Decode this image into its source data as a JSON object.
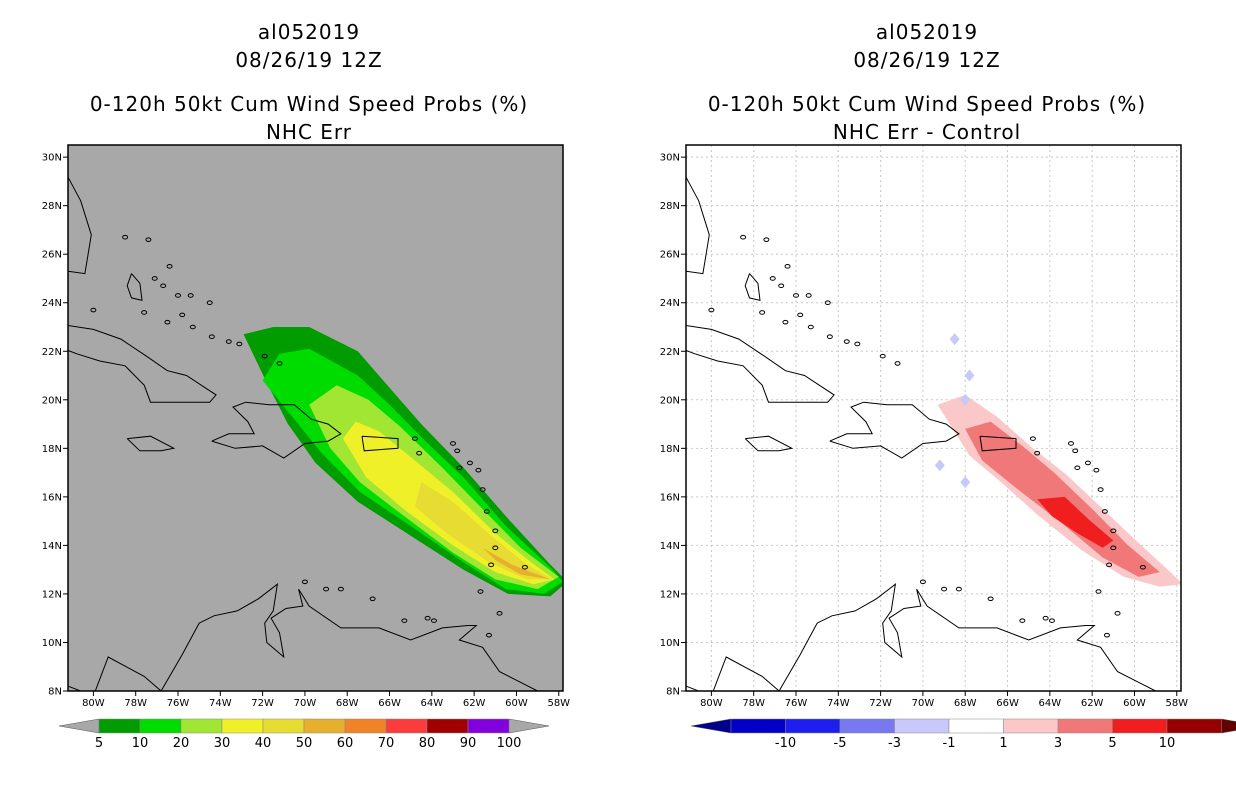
{
  "left_panel": {
    "storm_id": "al052019",
    "datetime": "08/26/19 12Z",
    "product": "0-120h 50kt Cum Wind Speed Probs (%)",
    "subtitle": "NHC Err",
    "background_color": "#a8a8a8",
    "colorbar": {
      "colors": [
        "#009c00",
        "#00dc00",
        "#a0e632",
        "#f0f028",
        "#e6dc32",
        "#e6af2d",
        "#f08228",
        "#fa3c3c",
        "#a00000",
        "#8200dc"
      ],
      "labels": [
        "5",
        "10",
        "20",
        "30",
        "40",
        "50",
        "60",
        "70",
        "80",
        "90",
        "100"
      ]
    }
  },
  "right_panel": {
    "storm_id": "al052019",
    "datetime": "08/26/19 12Z",
    "product": "0-120h 50kt Cum Wind Speed Probs (%)",
    "subtitle": "NHC Err - Control",
    "background_color": "#ffffff",
    "colorbar": {
      "colors": [
        "#0000c8",
        "#1e1ef0",
        "#7878f0",
        "#c8c8fa",
        "#ffffff",
        "#fac8c8",
        "#f07878",
        "#f01e1e",
        "#960000"
      ],
      "labels": [
        "-10",
        "-5",
        "-3",
        "-1",
        "1",
        "3",
        "5",
        "10"
      ]
    }
  },
  "axes": {
    "lat_labels": [
      "8N",
      "10N",
      "12N",
      "14N",
      "16N",
      "18N",
      "20N",
      "22N",
      "24N",
      "26N",
      "28N",
      "30N"
    ],
    "lon_labels": [
      "80W",
      "78W",
      "76W",
      "74W",
      "72W",
      "70W",
      "68W",
      "66W",
      "64W",
      "62W",
      "60W",
      "58W"
    ],
    "lon_range_deg": [
      -81.2,
      -57.8
    ],
    "lat_range_deg": [
      8.0,
      30.5
    ]
  },
  "map_data": {
    "left_contours": [
      {
        "level": "5-10",
        "color": "#009c00",
        "outline": [
          [
            -72.9,
            22.7
          ],
          [
            -71.5,
            23.0
          ],
          [
            -69.8,
            23.0
          ],
          [
            -67.5,
            22.0
          ],
          [
            -66.0,
            20.5
          ],
          [
            -64.5,
            19.0
          ],
          [
            -62.5,
            17.2
          ],
          [
            -60.5,
            15.2
          ],
          [
            -58.5,
            13.3
          ],
          [
            -57.6,
            12.5
          ],
          [
            -58.4,
            11.9
          ],
          [
            -60.4,
            12.0
          ],
          [
            -62.5,
            13.0
          ],
          [
            -65.0,
            14.4
          ],
          [
            -67.5,
            15.8
          ],
          [
            -69.5,
            17.4
          ],
          [
            -70.8,
            19.0
          ],
          [
            -71.8,
            20.7
          ]
        ]
      },
      {
        "level": "10-20",
        "color": "#00dc00",
        "outline": [
          [
            -72.0,
            20.8
          ],
          [
            -71.2,
            21.9
          ],
          [
            -69.8,
            22.1
          ],
          [
            -67.5,
            21.0
          ],
          [
            -66.0,
            19.8
          ],
          [
            -64.3,
            18.3
          ],
          [
            -62.5,
            16.8
          ],
          [
            -60.5,
            14.8
          ],
          [
            -58.4,
            13.1
          ],
          [
            -57.8,
            12.5
          ],
          [
            -58.7,
            12.0
          ],
          [
            -60.5,
            12.2
          ],
          [
            -62.5,
            13.3
          ],
          [
            -65.0,
            14.8
          ],
          [
            -67.4,
            16.2
          ],
          [
            -69.2,
            17.8
          ],
          [
            -70.6,
            19.3
          ]
        ]
      },
      {
        "level": "20-30",
        "color": "#a0e632",
        "outline": [
          [
            -69.8,
            19.8
          ],
          [
            -68.5,
            20.6
          ],
          [
            -67.0,
            20.0
          ],
          [
            -65.5,
            18.9
          ],
          [
            -63.5,
            17.2
          ],
          [
            -61.6,
            15.5
          ],
          [
            -59.8,
            13.9
          ],
          [
            -58.0,
            12.7
          ],
          [
            -59.0,
            12.2
          ],
          [
            -61.0,
            12.6
          ],
          [
            -63.0,
            13.7
          ],
          [
            -65.3,
            15.2
          ],
          [
            -67.4,
            16.6
          ],
          [
            -68.8,
            18.0
          ]
        ]
      },
      {
        "level": "30-40",
        "color": "#f0f028",
        "outline": [
          [
            -68.2,
            18.4
          ],
          [
            -67.6,
            19.1
          ],
          [
            -66.5,
            18.7
          ],
          [
            -64.8,
            17.5
          ],
          [
            -63.0,
            16.2
          ],
          [
            -61.0,
            14.5
          ],
          [
            -59.3,
            13.3
          ],
          [
            -58.2,
            12.6
          ],
          [
            -59.2,
            12.4
          ],
          [
            -61.0,
            12.9
          ],
          [
            -63.0,
            14.0
          ],
          [
            -65.2,
            15.4
          ],
          [
            -67.1,
            16.8
          ]
        ]
      },
      {
        "level": "40-50",
        "color": "#e6dc32",
        "outline": [
          [
            -64.5,
            16.6
          ],
          [
            -63.0,
            15.8
          ],
          [
            -61.2,
            14.4
          ],
          [
            -59.5,
            13.2
          ],
          [
            -58.3,
            12.6
          ],
          [
            -59.5,
            12.6
          ],
          [
            -61.3,
            13.3
          ],
          [
            -63.3,
            14.5
          ],
          [
            -64.8,
            15.6
          ]
        ]
      },
      {
        "level": "50-60",
        "color": "#e6af2d",
        "outline": [
          [
            -61.6,
            13.9
          ],
          [
            -60.2,
            13.2
          ],
          [
            -58.4,
            12.6
          ],
          [
            -59.8,
            12.8
          ],
          [
            -61.0,
            13.4
          ]
        ]
      }
    ],
    "right_contours": [
      {
        "level": "1-3",
        "color": "#fac8c8",
        "outline": [
          [
            -69.3,
            19.8
          ],
          [
            -68.0,
            20.2
          ],
          [
            -66.5,
            19.3
          ],
          [
            -64.8,
            18.0
          ],
          [
            -63.2,
            16.9
          ],
          [
            -61.5,
            15.5
          ],
          [
            -59.8,
            14.1
          ],
          [
            -58.3,
            12.9
          ],
          [
            -57.7,
            12.4
          ],
          [
            -58.8,
            12.3
          ],
          [
            -60.5,
            12.7
          ],
          [
            -62.5,
            13.8
          ],
          [
            -64.5,
            15.2
          ],
          [
            -66.3,
            16.6
          ],
          [
            -67.8,
            17.7
          ]
        ]
      },
      {
        "level": "3-5",
        "color": "#f07878",
        "outline": [
          [
            -68.0,
            18.8
          ],
          [
            -66.8,
            19.1
          ],
          [
            -65.3,
            18.1
          ],
          [
            -63.8,
            17.0
          ],
          [
            -62.0,
            15.5
          ],
          [
            -60.3,
            14.0
          ],
          [
            -58.8,
            12.9
          ],
          [
            -59.8,
            12.7
          ],
          [
            -61.5,
            13.5
          ],
          [
            -63.4,
            14.9
          ],
          [
            -65.5,
            16.3
          ],
          [
            -67.2,
            17.5
          ]
        ]
      },
      {
        "level": "5-10",
        "color": "#f01e1e",
        "outline": [
          [
            -64.6,
            15.9
          ],
          [
            -63.3,
            16.0
          ],
          [
            -62.2,
            15.1
          ],
          [
            -61.0,
            14.2
          ],
          [
            -61.5,
            13.9
          ],
          [
            -62.7,
            14.5
          ],
          [
            -63.9,
            15.2
          ]
        ]
      }
    ],
    "right_negative_spots": [
      [
        -68.5,
        22.5
      ],
      [
        -67.8,
        21.0
      ],
      [
        -68.0,
        20.0
      ],
      [
        -69.2,
        17.3
      ],
      [
        -68.0,
        16.6
      ]
    ]
  }
}
